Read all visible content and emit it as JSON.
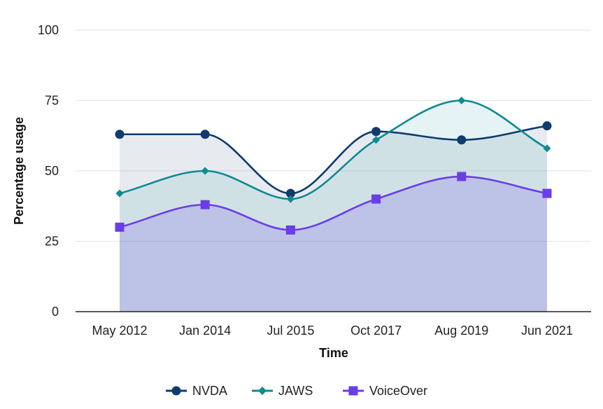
{
  "chart_data": {
    "type": "area",
    "xlabel": "Time",
    "ylabel": "Percentage usage",
    "ylim": [
      0,
      100
    ],
    "yticks": [
      0,
      25,
      50,
      75,
      100
    ],
    "categories": [
      "May 2012",
      "Jan 2014",
      "Jul 2015",
      "Oct 2017",
      "Aug 2019",
      "Jun 2021"
    ],
    "series": [
      {
        "name": "NVDA",
        "values": [
          63,
          63,
          42,
          64,
          61,
          66
        ],
        "color": "#0f3b6e",
        "marker": "circle"
      },
      {
        "name": "JAWS",
        "values": [
          42,
          50,
          40,
          61,
          75,
          58
        ],
        "color": "#0e8a93",
        "marker": "diamond"
      },
      {
        "name": "VoiceOver",
        "values": [
          30,
          38,
          29,
          40,
          48,
          42
        ],
        "color": "#6a3de8",
        "marker": "square"
      }
    ],
    "grid": true,
    "legend_position": "bottom"
  }
}
